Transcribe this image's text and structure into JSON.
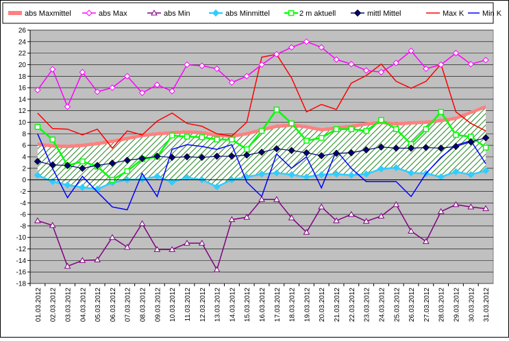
{
  "chart_data": {
    "type": "line",
    "title": "",
    "xlabel": "",
    "ylabel": "",
    "ylim": [
      -18,
      26
    ],
    "ytick_step": 2,
    "grid": true,
    "legend_position": "top",
    "plot_background": "#c0c0c0",
    "x": [
      "01.03.2012",
      "02.03.2012",
      "03.03.2012",
      "04.03.2012",
      "05.03.2012",
      "06.03.2012",
      "07.03.2012",
      "08.03.2012",
      "09.03.2012",
      "10.03.2012",
      "11.03.2012",
      "12.03.2012",
      "13.03.2012",
      "14.03.2012",
      "15.03.2012",
      "16.03.2012",
      "17.03.2012",
      "18.03.2012",
      "19.03.2012",
      "20.03.2012",
      "21.03.2012",
      "22.03.2012",
      "23.03.2012",
      "24.03.2012",
      "25.03.2012",
      "26.03.2012",
      "27.03.2012",
      "28.03.2012",
      "29.03.2012",
      "30.03.2012",
      "31.03.2012"
    ],
    "series": [
      {
        "name": "abs Maxmittel",
        "color": "#ff8080",
        "marker": "none",
        "style": "area-top",
        "values": [
          6.5,
          6.2,
          6.1,
          6.3,
          6.6,
          7.0,
          7.5,
          8.0,
          8.3,
          8.5,
          8.6,
          8.5,
          8.0,
          7.9,
          8.3,
          9.0,
          9.6,
          9.8,
          9.5,
          9.0,
          9.3,
          9.6,
          10.0,
          10.3,
          10.0,
          10.2,
          10.3,
          10.6,
          11.0,
          12.0,
          13.0
        ]
      },
      {
        "name": "abs Max",
        "color": "#ff00ff",
        "marker": "diamond-open",
        "values": [
          15.6,
          19.2,
          12.7,
          18.7,
          15.3,
          16.0,
          18.0,
          15.1,
          16.5,
          15.4,
          20.0,
          19.8,
          19.3,
          16.9,
          18.0,
          20.0,
          21.8,
          23.0,
          24.0,
          23.0,
          20.9,
          20.1,
          19.0,
          18.7,
          20.3,
          22.4,
          19.3,
          20.0,
          22.0,
          20.1,
          20.8
        ]
      },
      {
        "name": "abs Min",
        "color": "#800080",
        "marker": "triangle-open",
        "values": [
          -7.1,
          -7.9,
          -15.0,
          -14.0,
          -13.9,
          -10.0,
          -11.7,
          -7.6,
          -12.1,
          -12.1,
          -11.0,
          -11.0,
          -15.6,
          -6.9,
          -6.5,
          -3.4,
          -3.4,
          -6.6,
          -9.1,
          -4.7,
          -7.1,
          -6.0,
          -7.2,
          -6.3,
          -4.3,
          -8.9,
          -10.7,
          -5.5,
          -4.3,
          -4.7,
          -5.0
        ]
      },
      {
        "name": "abs Minmittel",
        "color": "#33ccff",
        "marker": "diamond",
        "values": [
          0.8,
          -0.3,
          -0.9,
          -1.3,
          -1.6,
          -0.5,
          0.0,
          0.1,
          0.6,
          -0.4,
          0.4,
          0.0,
          -1.2,
          0.0,
          0.5,
          1.0,
          1.2,
          0.9,
          0.5,
          0.9,
          1.0,
          0.8,
          1.0,
          1.9,
          2.1,
          1.2,
          1.1,
          0.5,
          1.4,
          0.9,
          1.6
        ]
      },
      {
        "name": "2 m aktuell",
        "color": "#00ff00",
        "marker": "square-open",
        "values": [
          9.2,
          7.0,
          2.5,
          3.2,
          2.3,
          0.0,
          1.5,
          3.6,
          4.0,
          7.7,
          7.5,
          7.4,
          7.0,
          7.0,
          5.3,
          8.5,
          12.2,
          9.8,
          6.8,
          7.3,
          8.8,
          8.8,
          8.5,
          10.4,
          8.8,
          6.2,
          8.8,
          11.8,
          7.8,
          7.5,
          5.6
        ]
      },
      {
        "name": "mittl Mittel",
        "color": "#000080",
        "marker": "diamond",
        "values": [
          3.2,
          2.6,
          2.5,
          2.0,
          2.5,
          2.9,
          3.4,
          3.7,
          4.1,
          3.9,
          4.0,
          3.9,
          4.1,
          4.1,
          4.3,
          4.8,
          5.4,
          5.1,
          4.7,
          4.2,
          4.6,
          4.7,
          5.2,
          5.7,
          5.5,
          5.5,
          5.6,
          5.5,
          5.8,
          6.6,
          7.3
        ]
      },
      {
        "name": "Max K",
        "color": "#ff0000",
        "marker": "none",
        "values": [
          11.6,
          8.9,
          8.8,
          7.8,
          8.8,
          5.5,
          8.5,
          7.8,
          10.2,
          11.6,
          9.8,
          9.3,
          8.0,
          7.6,
          10.0,
          21.3,
          21.8,
          17.7,
          11.8,
          13.1,
          12.2,
          16.8,
          18.1,
          20.1,
          17.1,
          15.9,
          17.1,
          20.1,
          11.8,
          9.8,
          8.5
        ]
      },
      {
        "name": "Min K",
        "color": "#0000ff",
        "marker": "none",
        "values": [
          8.0,
          2.0,
          -3.1,
          0.6,
          -2.1,
          -4.7,
          -5.2,
          1.1,
          -2.9,
          5.3,
          6.1,
          5.8,
          5.3,
          6.1,
          -0.4,
          -2.9,
          4.5,
          2.0,
          4.0,
          -1.4,
          5.1,
          2.0,
          -0.3,
          -0.3,
          -0.3,
          -2.9,
          1.1,
          3.9,
          6.0,
          6.8,
          2.8
        ]
      }
    ]
  }
}
